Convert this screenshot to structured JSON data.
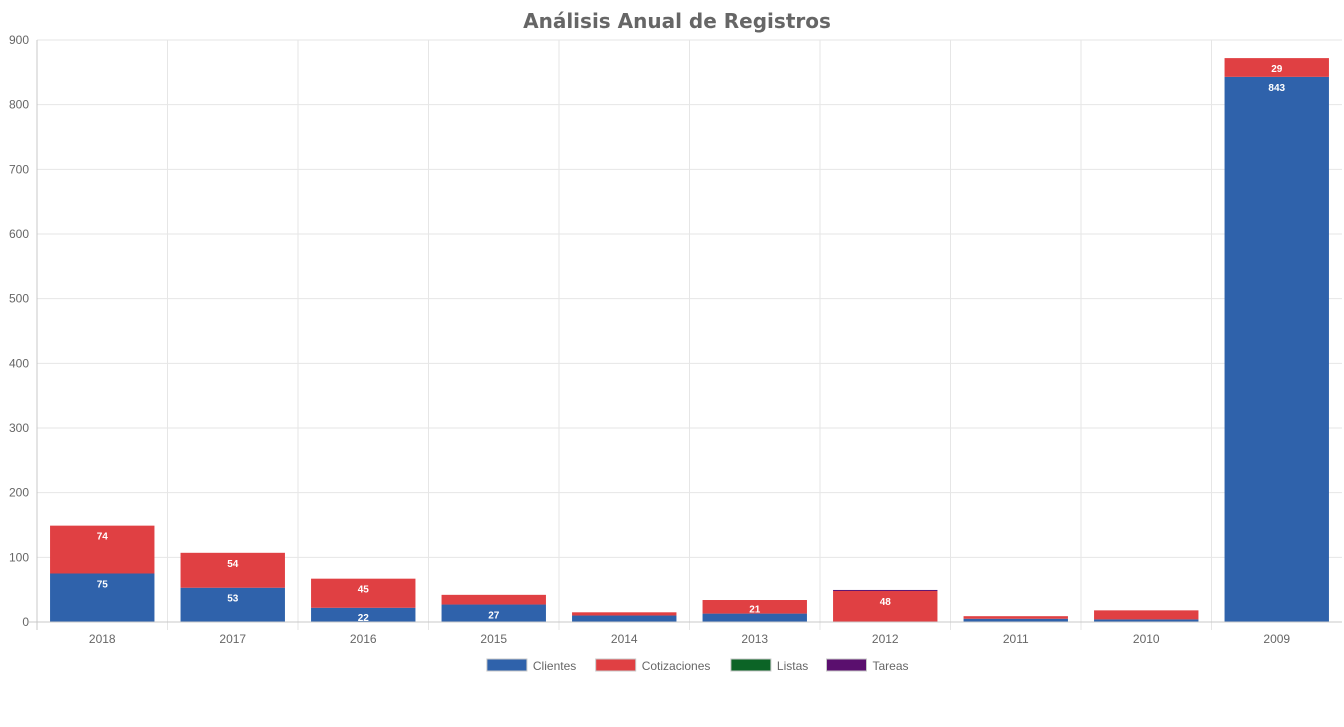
{
  "chart_data": {
    "type": "bar",
    "stacked": true,
    "title": "Análisis Anual de Registros",
    "xlabel": "",
    "ylabel": "",
    "categories": [
      "2018",
      "2017",
      "2016",
      "2015",
      "2014",
      "2013",
      "2012",
      "2011",
      "2010",
      "2009"
    ],
    "ylim": [
      0,
      900
    ],
    "yticks": [
      0,
      100,
      200,
      300,
      400,
      500,
      600,
      700,
      800,
      900
    ],
    "grid": true,
    "legend_position": "bottom",
    "series": [
      {
        "name": "Clientes",
        "color": "#2f62ab",
        "values": [
          75,
          53,
          22,
          27,
          10,
          13,
          0,
          5,
          4,
          843
        ],
        "labels": [
          "75",
          "53",
          "22",
          "27",
          "",
          "",
          "",
          "",
          "",
          "843"
        ]
      },
      {
        "name": "Cotizaciones",
        "color": "#e04043",
        "values": [
          74,
          54,
          45,
          15,
          5,
          21,
          48,
          4,
          14,
          29
        ],
        "labels": [
          "74",
          "54",
          "45",
          "",
          "",
          "21",
          "48",
          "",
          "",
          "29"
        ]
      },
      {
        "name": "Listas",
        "color": "#0c6426",
        "values": [
          0,
          0,
          0,
          0,
          0,
          0,
          0,
          0,
          0,
          0
        ],
        "labels": [
          "",
          "",
          "",
          "",
          "",
          "",
          "",
          "",
          "",
          ""
        ]
      },
      {
        "name": "Tareas",
        "color": "#5a0f6e",
        "values": [
          0,
          0,
          0,
          0,
          0,
          0,
          1,
          0,
          0,
          0
        ],
        "labels": [
          "",
          "",
          "",
          "",
          "",
          "",
          "",
          "",
          "",
          ""
        ]
      }
    ]
  }
}
